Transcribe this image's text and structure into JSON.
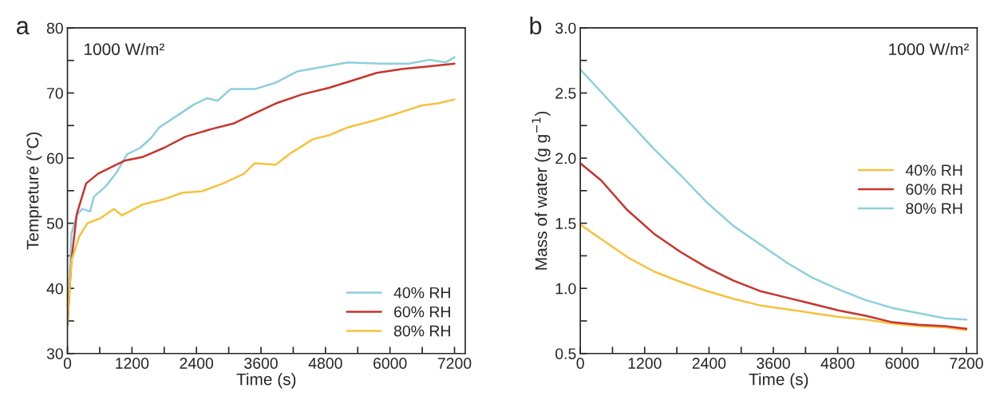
{
  "chart_data": [
    {
      "type": "line",
      "xlabel": "Time (s)",
      "ylabel": "Tempreture (°C)",
      "annotations": [
        "a",
        "1000 W/m²"
      ],
      "legend": "bottom right",
      "grid": false,
      "xlim": [
        0,
        7400
      ],
      "xticks": [
        0,
        {
          "value": 600,
          "label": null
        },
        1200,
        {
          "value": 1800,
          "label": null
        },
        2400,
        {
          "value": 3000,
          "label": null
        },
        3600,
        {
          "value": 4200,
          "label": null
        },
        4800,
        {
          "value": 5400,
          "label": null
        },
        6000,
        {
          "value": 6600,
          "label": null
        },
        7200
      ],
      "ylim": [
        30,
        80
      ],
      "yticks": [
        30,
        {
          "value": 35,
          "label": null
        },
        40,
        {
          "value": 45,
          "label": null
        },
        50,
        {
          "value": 55,
          "label": null
        },
        60,
        {
          "value": 65,
          "label": null
        },
        70,
        {
          "value": 75,
          "label": null
        },
        80
      ],
      "series": [
        {
          "name": "40% RH",
          "color": "#8ecfdd",
          "x": [
            0,
            74,
            173,
            272,
            420,
            494,
            716,
            914,
            1111,
            1358,
            1556,
            1704,
            2000,
            2346,
            2593,
            2790,
            3037,
            3481,
            3877,
            4272,
            4667,
            5210,
            5852,
            6346,
            6741,
            7037,
            7200
          ],
          "values": [
            34.3,
            48.4,
            51.2,
            52.2,
            51.8,
            54.1,
            55.7,
            57.8,
            60.6,
            61.6,
            63.1,
            64.7,
            66.3,
            68.2,
            69.2,
            68.8,
            70.6,
            70.6,
            71.6,
            73.3,
            73.9,
            74.7,
            74.5,
            74.5,
            75.1,
            74.7,
            75.5
          ]
        },
        {
          "name": "60% RH",
          "color": "#c8342c",
          "x": [
            0,
            74,
            173,
            346,
            568,
            815,
            1062,
            1407,
            1802,
            2198,
            2692,
            3086,
            3383,
            3877,
            4370,
            4864,
            5259,
            5753,
            6247,
            6741,
            7200
          ],
          "values": [
            34.5,
            44.3,
            51.4,
            56.1,
            57.6,
            58.6,
            59.6,
            60.2,
            61.6,
            63.3,
            64.5,
            65.3,
            66.5,
            68.4,
            69.8,
            70.8,
            71.8,
            73.1,
            73.7,
            74.1,
            74.5
          ]
        },
        {
          "name": "80% RH",
          "color": "#f5c23e",
          "x": [
            0,
            74,
            222,
            370,
            617,
            864,
            1012,
            1407,
            1802,
            2148,
            2494,
            2889,
            3284,
            3481,
            3877,
            4123,
            4568,
            4864,
            5210,
            5753,
            6148,
            6593,
            6889,
            7200
          ],
          "values": [
            34.7,
            44.3,
            48.0,
            50.0,
            50.8,
            52.2,
            51.2,
            52.9,
            53.7,
            54.7,
            54.9,
            56.1,
            57.6,
            59.2,
            59.0,
            60.6,
            62.9,
            63.5,
            64.7,
            65.9,
            66.9,
            68.1,
            68.4,
            69.0
          ]
        }
      ]
    },
    {
      "type": "line",
      "xlabel": "Time (s)",
      "ylabel": "Mass of water (g g$^{−1}$)",
      "annotations": [
        "b",
        "1000 W/m²"
      ],
      "legend": "right",
      "grid": false,
      "xlim": [
        0,
        7400
      ],
      "xticks": [
        0,
        {
          "value": 600,
          "label": null
        },
        1200,
        {
          "value": 1800,
          "label": null
        },
        2400,
        {
          "value": 3000,
          "label": null
        },
        3600,
        {
          "value": 4200,
          "label": null
        },
        4800,
        {
          "value": 5400,
          "label": null
        },
        6000,
        {
          "value": 6600,
          "label": null
        },
        7200
      ],
      "ylim": [
        0.5,
        3.0
      ],
      "yticks": [
        {
          "value": 0.5,
          "label": "0.5"
        },
        {
          "value": 0.75,
          "label": null
        },
        {
          "value": 1.0,
          "label": "1.0"
        },
        {
          "value": 1.25,
          "label": null
        },
        {
          "value": 1.5,
          "label": "1.5"
        },
        {
          "value": 1.75,
          "label": null
        },
        {
          "value": 2.0,
          "label": "2.0"
        },
        {
          "value": 2.25,
          "label": null
        },
        {
          "value": 2.5,
          "label": "2.5"
        },
        {
          "value": 2.75,
          "label": null
        },
        {
          "value": 3.0,
          "label": "3.0"
        }
      ],
      "series": [
        {
          "name": "40% RH",
          "color": "#f5c23e",
          "x": [
            0,
            385,
            879,
            1373,
            1867,
            2360,
            2854,
            3348,
            3842,
            4336,
            4830,
            5323,
            5817,
            6311,
            6805,
            7200
          ],
          "values": [
            1.49,
            1.38,
            1.24,
            1.13,
            1.05,
            0.98,
            0.92,
            0.87,
            0.84,
            0.81,
            0.78,
            0.76,
            0.73,
            0.71,
            0.7,
            0.68
          ]
        },
        {
          "name": "60% RH",
          "color": "#c8342c",
          "x": [
            0,
            385,
            879,
            1373,
            1867,
            2360,
            2854,
            3348,
            3842,
            4336,
            4830,
            5323,
            5817,
            6311,
            6805,
            7200
          ],
          "values": [
            1.96,
            1.83,
            1.6,
            1.42,
            1.28,
            1.16,
            1.06,
            0.98,
            0.93,
            0.88,
            0.83,
            0.79,
            0.74,
            0.72,
            0.71,
            0.69
          ]
        },
        {
          "name": "80% RH",
          "color": "#8ecfdd",
          "x": [
            0,
            632,
            1373,
            1867,
            2360,
            2854,
            3348,
            3842,
            4336,
            4830,
            5323,
            5817,
            6311,
            6805,
            7200
          ],
          "values": [
            2.68,
            2.4,
            2.07,
            1.87,
            1.66,
            1.48,
            1.34,
            1.2,
            1.08,
            0.99,
            0.91,
            0.85,
            0.81,
            0.77,
            0.76
          ]
        }
      ]
    }
  ]
}
